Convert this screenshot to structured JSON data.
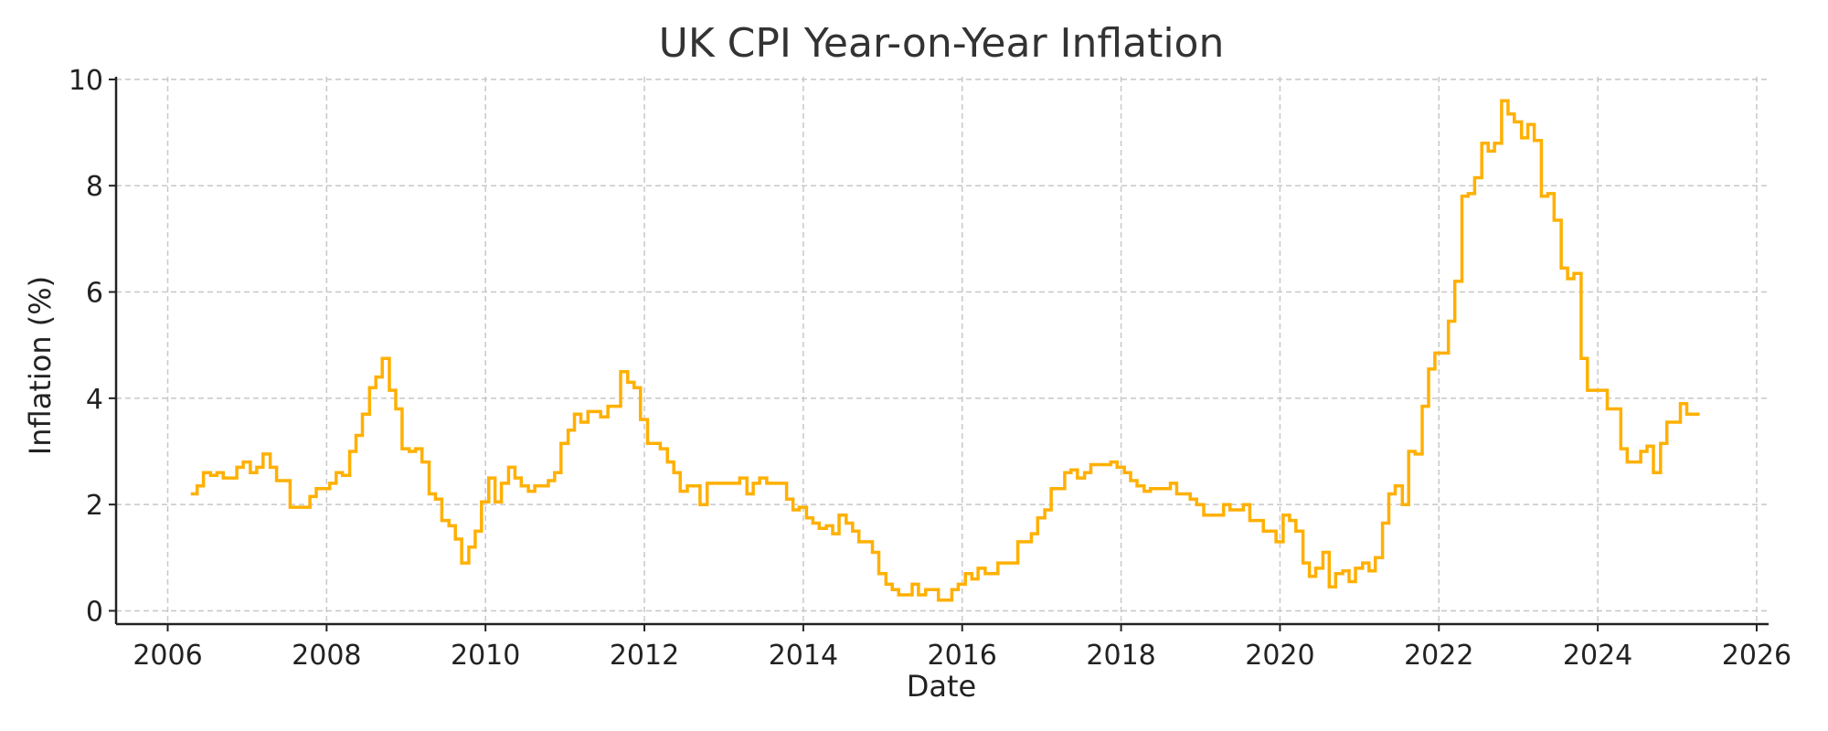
{
  "chart_data": {
    "type": "line",
    "title": "UK CPI Year-on-Year Inflation",
    "xlabel": "Date",
    "ylabel": "Inflation (%)",
    "xlim": [
      2005.35,
      2026.15
    ],
    "ylim": [
      -0.25,
      10.05
    ],
    "x_ticks": [
      2006,
      2008,
      2010,
      2012,
      2014,
      2016,
      2018,
      2020,
      2022,
      2024,
      2026
    ],
    "y_ticks": [
      0,
      2,
      4,
      6,
      8,
      10
    ],
    "grid": true,
    "step": true,
    "colors": {
      "series": "#FFB000"
    },
    "series": [
      {
        "points": [
          [
            2006.29,
            2.2
          ],
          [
            2006.37,
            2.35
          ],
          [
            2006.45,
            2.6
          ],
          [
            2006.54,
            2.55
          ],
          [
            2006.62,
            2.6
          ],
          [
            2006.7,
            2.5
          ],
          [
            2006.79,
            2.5
          ],
          [
            2006.87,
            2.7
          ],
          [
            2006.95,
            2.8
          ],
          [
            2007.04,
            2.6
          ],
          [
            2007.12,
            2.7
          ],
          [
            2007.2,
            2.95
          ],
          [
            2007.29,
            2.7
          ],
          [
            2007.37,
            2.45
          ],
          [
            2007.45,
            2.45
          ],
          [
            2007.54,
            1.95
          ],
          [
            2007.62,
            1.95
          ],
          [
            2007.7,
            1.95
          ],
          [
            2007.79,
            2.15
          ],
          [
            2007.87,
            2.3
          ],
          [
            2007.95,
            2.3
          ],
          [
            2008.04,
            2.4
          ],
          [
            2008.12,
            2.6
          ],
          [
            2008.2,
            2.55
          ],
          [
            2008.29,
            3.0
          ],
          [
            2008.37,
            3.3
          ],
          [
            2008.45,
            3.7
          ],
          [
            2008.54,
            4.2
          ],
          [
            2008.62,
            4.4
          ],
          [
            2008.7,
            4.75
          ],
          [
            2008.79,
            4.15
          ],
          [
            2008.87,
            3.8
          ],
          [
            2008.95,
            3.05
          ],
          [
            2009.04,
            3.0
          ],
          [
            2009.12,
            3.05
          ],
          [
            2009.2,
            2.8
          ],
          [
            2009.29,
            2.2
          ],
          [
            2009.37,
            2.1
          ],
          [
            2009.45,
            1.7
          ],
          [
            2009.54,
            1.6
          ],
          [
            2009.62,
            1.35
          ],
          [
            2009.7,
            0.9
          ],
          [
            2009.79,
            1.2
          ],
          [
            2009.87,
            1.5
          ],
          [
            2009.95,
            2.05
          ],
          [
            2010.04,
            2.5
          ],
          [
            2010.12,
            2.05
          ],
          [
            2010.2,
            2.4
          ],
          [
            2010.29,
            2.7
          ],
          [
            2010.37,
            2.5
          ],
          [
            2010.45,
            2.35
          ],
          [
            2010.54,
            2.25
          ],
          [
            2010.62,
            2.35
          ],
          [
            2010.7,
            2.35
          ],
          [
            2010.79,
            2.45
          ],
          [
            2010.87,
            2.6
          ],
          [
            2010.95,
            3.15
          ],
          [
            2011.04,
            3.4
          ],
          [
            2011.12,
            3.7
          ],
          [
            2011.2,
            3.55
          ],
          [
            2011.29,
            3.75
          ],
          [
            2011.37,
            3.75
          ],
          [
            2011.45,
            3.65
          ],
          [
            2011.54,
            3.85
          ],
          [
            2011.62,
            3.85
          ],
          [
            2011.7,
            4.5
          ],
          [
            2011.79,
            4.3
          ],
          [
            2011.87,
            4.2
          ],
          [
            2011.95,
            3.6
          ],
          [
            2012.04,
            3.15
          ],
          [
            2012.12,
            3.15
          ],
          [
            2012.2,
            3.05
          ],
          [
            2012.29,
            2.8
          ],
          [
            2012.37,
            2.6
          ],
          [
            2012.45,
            2.25
          ],
          [
            2012.54,
            2.35
          ],
          [
            2012.62,
            2.35
          ],
          [
            2012.7,
            2.0
          ],
          [
            2012.79,
            2.4
          ],
          [
            2012.87,
            2.4
          ],
          [
            2012.95,
            2.4
          ],
          [
            2013.04,
            2.4
          ],
          [
            2013.12,
            2.4
          ],
          [
            2013.2,
            2.5
          ],
          [
            2013.29,
            2.2
          ],
          [
            2013.37,
            2.4
          ],
          [
            2013.45,
            2.5
          ],
          [
            2013.54,
            2.4
          ],
          [
            2013.62,
            2.4
          ],
          [
            2013.7,
            2.4
          ],
          [
            2013.79,
            2.1
          ],
          [
            2013.87,
            1.9
          ],
          [
            2013.95,
            1.95
          ],
          [
            2014.04,
            1.75
          ],
          [
            2014.12,
            1.65
          ],
          [
            2014.2,
            1.55
          ],
          [
            2014.29,
            1.6
          ],
          [
            2014.37,
            1.45
          ],
          [
            2014.45,
            1.8
          ],
          [
            2014.54,
            1.65
          ],
          [
            2014.62,
            1.5
          ],
          [
            2014.7,
            1.3
          ],
          [
            2014.79,
            1.3
          ],
          [
            2014.87,
            1.1
          ],
          [
            2014.95,
            0.7
          ],
          [
            2015.04,
            0.5
          ],
          [
            2015.12,
            0.4
          ],
          [
            2015.2,
            0.3
          ],
          [
            2015.29,
            0.3
          ],
          [
            2015.37,
            0.5
          ],
          [
            2015.45,
            0.3
          ],
          [
            2015.54,
            0.4
          ],
          [
            2015.62,
            0.4
          ],
          [
            2015.7,
            0.2
          ],
          [
            2015.79,
            0.2
          ],
          [
            2015.87,
            0.4
          ],
          [
            2015.95,
            0.5
          ],
          [
            2016.04,
            0.7
          ],
          [
            2016.12,
            0.6
          ],
          [
            2016.2,
            0.8
          ],
          [
            2016.29,
            0.7
          ],
          [
            2016.37,
            0.7
          ],
          [
            2016.45,
            0.9
          ],
          [
            2016.54,
            0.9
          ],
          [
            2016.62,
            0.9
          ],
          [
            2016.7,
            1.3
          ],
          [
            2016.79,
            1.3
          ],
          [
            2016.87,
            1.45
          ],
          [
            2016.95,
            1.75
          ],
          [
            2017.04,
            1.9
          ],
          [
            2017.12,
            2.3
          ],
          [
            2017.2,
            2.3
          ],
          [
            2017.29,
            2.6
          ],
          [
            2017.37,
            2.65
          ],
          [
            2017.45,
            2.5
          ],
          [
            2017.54,
            2.6
          ],
          [
            2017.62,
            2.75
          ],
          [
            2017.7,
            2.75
          ],
          [
            2017.79,
            2.75
          ],
          [
            2017.87,
            2.8
          ],
          [
            2017.95,
            2.7
          ],
          [
            2018.04,
            2.6
          ],
          [
            2018.12,
            2.45
          ],
          [
            2018.2,
            2.35
          ],
          [
            2018.29,
            2.25
          ],
          [
            2018.37,
            2.3
          ],
          [
            2018.45,
            2.3
          ],
          [
            2018.54,
            2.3
          ],
          [
            2018.62,
            2.4
          ],
          [
            2018.7,
            2.2
          ],
          [
            2018.79,
            2.2
          ],
          [
            2018.87,
            2.1
          ],
          [
            2018.95,
            2.0
          ],
          [
            2019.04,
            1.8
          ],
          [
            2019.12,
            1.8
          ],
          [
            2019.2,
            1.8
          ],
          [
            2019.29,
            2.0
          ],
          [
            2019.37,
            1.9
          ],
          [
            2019.45,
            1.9
          ],
          [
            2019.54,
            2.0
          ],
          [
            2019.62,
            1.7
          ],
          [
            2019.7,
            1.7
          ],
          [
            2019.79,
            1.5
          ],
          [
            2019.87,
            1.5
          ],
          [
            2019.95,
            1.3
          ],
          [
            2020.04,
            1.8
          ],
          [
            2020.12,
            1.7
          ],
          [
            2020.2,
            1.5
          ],
          [
            2020.29,
            0.9
          ],
          [
            2020.37,
            0.65
          ],
          [
            2020.45,
            0.8
          ],
          [
            2020.54,
            1.1
          ],
          [
            2020.62,
            0.45
          ],
          [
            2020.7,
            0.7
          ],
          [
            2020.79,
            0.75
          ],
          [
            2020.87,
            0.55
          ],
          [
            2020.95,
            0.8
          ],
          [
            2021.04,
            0.9
          ],
          [
            2021.12,
            0.75
          ],
          [
            2021.2,
            1.0
          ],
          [
            2021.29,
            1.65
          ],
          [
            2021.37,
            2.2
          ],
          [
            2021.45,
            2.35
          ],
          [
            2021.54,
            2.0
          ],
          [
            2021.62,
            3.0
          ],
          [
            2021.7,
            2.95
          ],
          [
            2021.79,
            3.85
          ],
          [
            2021.87,
            4.55
          ],
          [
            2021.95,
            4.85
          ],
          [
            2022.04,
            4.85
          ],
          [
            2022.12,
            5.45
          ],
          [
            2022.2,
            6.2
          ],
          [
            2022.29,
            7.8
          ],
          [
            2022.37,
            7.85
          ],
          [
            2022.45,
            8.15
          ],
          [
            2022.54,
            8.8
          ],
          [
            2022.62,
            8.65
          ],
          [
            2022.7,
            8.8
          ],
          [
            2022.79,
            9.6
          ],
          [
            2022.87,
            9.35
          ],
          [
            2022.95,
            9.2
          ],
          [
            2023.04,
            8.9
          ],
          [
            2023.12,
            9.15
          ],
          [
            2023.2,
            8.85
          ],
          [
            2023.29,
            7.8
          ],
          [
            2023.37,
            7.85
          ],
          [
            2023.45,
            7.35
          ],
          [
            2023.54,
            6.45
          ],
          [
            2023.62,
            6.25
          ],
          [
            2023.7,
            6.35
          ],
          [
            2023.79,
            4.75
          ],
          [
            2023.87,
            4.15
          ],
          [
            2023.95,
            4.15
          ],
          [
            2024.04,
            4.15
          ],
          [
            2024.12,
            3.8
          ],
          [
            2024.2,
            3.8
          ],
          [
            2024.29,
            3.05
          ],
          [
            2024.37,
            2.8
          ],
          [
            2024.45,
            2.8
          ],
          [
            2024.54,
            3.0
          ],
          [
            2024.62,
            3.1
          ],
          [
            2024.7,
            2.6
          ],
          [
            2024.79,
            3.15
          ],
          [
            2024.87,
            3.55
          ],
          [
            2024.95,
            3.55
          ],
          [
            2025.04,
            3.9
          ],
          [
            2025.12,
            3.7
          ],
          [
            2025.2,
            3.7
          ]
        ]
      }
    ]
  }
}
